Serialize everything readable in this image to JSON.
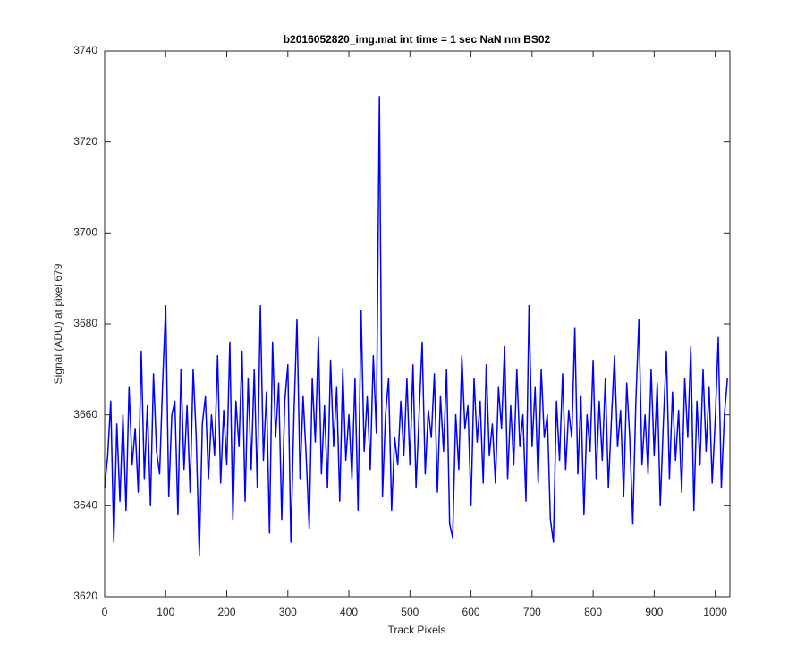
{
  "chart_data": {
    "type": "line",
    "title": "b2016052820_img.mat int time = 1 sec  NaN nm BS02",
    "xlabel": "Track Pixels",
    "ylabel": "Signal (ADU) at pixel 679",
    "xlim": [
      0,
      1024
    ],
    "ylim": [
      3620,
      3740
    ],
    "xticks": [
      0,
      100,
      200,
      300,
      400,
      500,
      600,
      700,
      800,
      900,
      1000
    ],
    "yticks": [
      3620,
      3640,
      3660,
      3680,
      3700,
      3720,
      3740
    ],
    "x": [
      0,
      5,
      10,
      15,
      20,
      25,
      30,
      35,
      40,
      45,
      50,
      55,
      60,
      65,
      70,
      75,
      80,
      85,
      90,
      95,
      100,
      105,
      110,
      115,
      120,
      125,
      130,
      135,
      140,
      145,
      150,
      155,
      160,
      165,
      170,
      175,
      180,
      185,
      190,
      195,
      200,
      205,
      210,
      215,
      220,
      225,
      230,
      235,
      240,
      245,
      250,
      255,
      260,
      265,
      270,
      275,
      280,
      285,
      290,
      295,
      300,
      305,
      310,
      315,
      320,
      325,
      330,
      335,
      340,
      345,
      350,
      355,
      360,
      365,
      370,
      375,
      380,
      385,
      390,
      395,
      400,
      405,
      410,
      415,
      420,
      425,
      430,
      435,
      440,
      445,
      450,
      455,
      460,
      465,
      470,
      475,
      480,
      485,
      490,
      495,
      500,
      505,
      510,
      515,
      520,
      525,
      530,
      535,
      540,
      545,
      550,
      555,
      560,
      565,
      570,
      575,
      580,
      585,
      590,
      595,
      600,
      605,
      610,
      615,
      620,
      625,
      630,
      635,
      640,
      645,
      650,
      655,
      660,
      665,
      670,
      675,
      680,
      685,
      690,
      695,
      700,
      705,
      710,
      715,
      720,
      725,
      730,
      735,
      740,
      745,
      750,
      755,
      760,
      765,
      770,
      775,
      780,
      785,
      790,
      795,
      800,
      805,
      810,
      815,
      820,
      825,
      830,
      835,
      840,
      845,
      850,
      855,
      860,
      865,
      870,
      875,
      880,
      885,
      890,
      895,
      900,
      905,
      910,
      915,
      920,
      925,
      930,
      935,
      940,
      945,
      950,
      955,
      960,
      965,
      970,
      975,
      980,
      985,
      990,
      995,
      1000,
      1005,
      1010,
      1015,
      1020
    ],
    "series": [
      {
        "color": "#0000ff",
        "values": [
          3644,
          3651,
          3663,
          3632,
          3658,
          3641,
          3660,
          3639,
          3666,
          3649,
          3657,
          3643,
          3674,
          3646,
          3662,
          3640,
          3669,
          3652,
          3647,
          3667,
          3684,
          3642,
          3660,
          3663,
          3638,
          3670,
          3648,
          3662,
          3643,
          3670,
          3655,
          3629,
          3658,
          3664,
          3646,
          3660,
          3651,
          3673,
          3645,
          3661,
          3649,
          3676,
          3637,
          3663,
          3653,
          3674,
          3641,
          3668,
          3648,
          3670,
          3644,
          3684,
          3650,
          3665,
          3634,
          3676,
          3655,
          3667,
          3637,
          3663,
          3671,
          3632,
          3660,
          3681,
          3646,
          3664,
          3651,
          3635,
          3668,
          3654,
          3677,
          3647,
          3662,
          3644,
          3672,
          3653,
          3666,
          3641,
          3670,
          3650,
          3660,
          3646,
          3668,
          3639,
          3683,
          3652,
          3664,
          3648,
          3673,
          3656,
          3730,
          3642,
          3660,
          3668,
          3639,
          3655,
          3649,
          3663,
          3651,
          3668,
          3649,
          3671,
          3644,
          3660,
          3676,
          3647,
          3661,
          3655,
          3669,
          3643,
          3664,
          3652,
          3670,
          3636,
          3633,
          3660,
          3648,
          3673,
          3657,
          3662,
          3640,
          3668,
          3654,
          3663,
          3645,
          3671,
          3651,
          3658,
          3645,
          3666,
          3657,
          3675,
          3646,
          3662,
          3649,
          3670,
          3653,
          3660,
          3641,
          3684,
          3653,
          3666,
          3645,
          3670,
          3655,
          3660,
          3637,
          3632,
          3663,
          3650,
          3669,
          3648,
          3661,
          3655,
          3679,
          3647,
          3664,
          3638,
          3660,
          3652,
          3672,
          3646,
          3663,
          3650,
          3668,
          3644,
          3659,
          3673,
          3653,
          3661,
          3642,
          3667,
          3655,
          3636,
          3663,
          3681,
          3649,
          3660,
          3647,
          3670,
          3651,
          3667,
          3640,
          3658,
          3674,
          3646,
          3665,
          3650,
          3661,
          3643,
          3668,
          3655,
          3675,
          3639,
          3663,
          3649,
          3670,
          3652,
          3666,
          3645,
          3659,
          3677,
          3644,
          3660,
          3668
        ]
      }
    ]
  }
}
